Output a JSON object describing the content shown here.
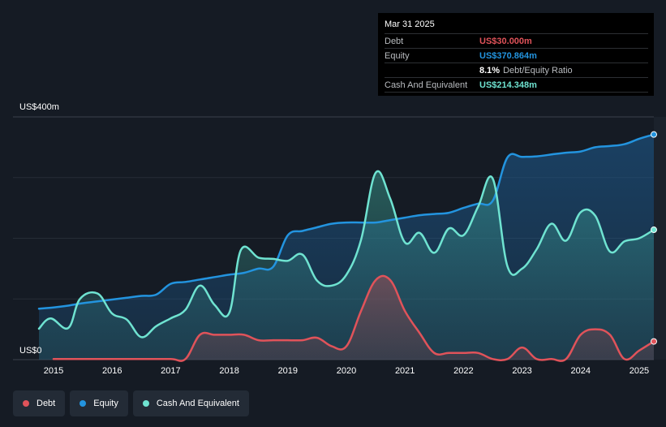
{
  "tooltip": {
    "date": "Mar 31 2025",
    "debt_label": "Debt",
    "debt_value": "US$30.000m",
    "equity_label": "Equity",
    "equity_value": "US$370.864m",
    "ratio_value": "8.1%",
    "ratio_label": "Debt/Equity Ratio",
    "cash_label": "Cash And Equivalent",
    "cash_value": "US$214.348m"
  },
  "legend": [
    {
      "label": "Debt",
      "color": "#e0535a"
    },
    {
      "label": "Equity",
      "color": "#2394df"
    },
    {
      "label": "Cash And Equivalent",
      "color": "#6fe3d1"
    }
  ],
  "chart_data": {
    "type": "area",
    "y_unit_labels": {
      "top": "US$400m",
      "bottom": "US$0"
    },
    "ylim": [
      0,
      400
    ],
    "xlim": [
      2014.75,
      2025.25
    ],
    "x_ticks": [
      "2015",
      "2016",
      "2017",
      "2018",
      "2019",
      "2020",
      "2021",
      "2022",
      "2023",
      "2024",
      "2025"
    ],
    "grid": true,
    "legend_position": "bottom-left",
    "series": [
      {
        "name": "Equity",
        "color": "#2394df",
        "points": [
          [
            2014.75,
            84
          ],
          [
            2015.0,
            86
          ],
          [
            2015.25,
            89
          ],
          [
            2015.5,
            93
          ],
          [
            2015.75,
            96
          ],
          [
            2016.0,
            99
          ],
          [
            2016.25,
            102
          ],
          [
            2016.5,
            105
          ],
          [
            2016.75,
            107
          ],
          [
            2017.0,
            125
          ],
          [
            2017.25,
            128
          ],
          [
            2017.5,
            132
          ],
          [
            2017.75,
            136
          ],
          [
            2018.0,
            140
          ],
          [
            2018.25,
            143
          ],
          [
            2018.5,
            150
          ],
          [
            2018.75,
            153
          ],
          [
            2019.0,
            205
          ],
          [
            2019.25,
            212
          ],
          [
            2019.5,
            218
          ],
          [
            2019.75,
            224
          ],
          [
            2020.0,
            226
          ],
          [
            2020.25,
            226
          ],
          [
            2020.5,
            226
          ],
          [
            2020.75,
            230
          ],
          [
            2021.0,
            234
          ],
          [
            2021.25,
            238
          ],
          [
            2021.5,
            240
          ],
          [
            2021.75,
            242
          ],
          [
            2022.0,
            250
          ],
          [
            2022.25,
            257
          ],
          [
            2022.5,
            262
          ],
          [
            2022.75,
            333
          ],
          [
            2023.0,
            334
          ],
          [
            2023.25,
            335
          ],
          [
            2023.5,
            338
          ],
          [
            2023.75,
            341
          ],
          [
            2024.0,
            343
          ],
          [
            2024.25,
            350
          ],
          [
            2024.5,
            352
          ],
          [
            2024.75,
            355
          ],
          [
            2025.0,
            364
          ],
          [
            2025.25,
            371
          ]
        ]
      },
      {
        "name": "Cash And Equivalent",
        "color": "#6fe3d1",
        "points": [
          [
            2014.75,
            51
          ],
          [
            2014.95,
            68
          ],
          [
            2015.25,
            52
          ],
          [
            2015.45,
            100
          ],
          [
            2015.75,
            109
          ],
          [
            2016.0,
            76
          ],
          [
            2016.25,
            66
          ],
          [
            2016.5,
            37
          ],
          [
            2016.75,
            55
          ],
          [
            2017.0,
            68
          ],
          [
            2017.25,
            82
          ],
          [
            2017.5,
            122
          ],
          [
            2017.75,
            90
          ],
          [
            2018.0,
            77
          ],
          [
            2018.2,
            181
          ],
          [
            2018.5,
            168
          ],
          [
            2018.75,
            166
          ],
          [
            2019.0,
            163
          ],
          [
            2019.25,
            173
          ],
          [
            2019.5,
            130
          ],
          [
            2019.75,
            122
          ],
          [
            2020.0,
            140
          ],
          [
            2020.25,
            197
          ],
          [
            2020.5,
            308
          ],
          [
            2020.75,
            265
          ],
          [
            2021.0,
            193
          ],
          [
            2021.25,
            209
          ],
          [
            2021.5,
            176
          ],
          [
            2021.75,
            216
          ],
          [
            2022.0,
            205
          ],
          [
            2022.25,
            252
          ],
          [
            2022.5,
            298
          ],
          [
            2022.75,
            154
          ],
          [
            2023.0,
            150
          ],
          [
            2023.25,
            182
          ],
          [
            2023.5,
            224
          ],
          [
            2023.75,
            196
          ],
          [
            2024.0,
            243
          ],
          [
            2024.25,
            237
          ],
          [
            2024.5,
            178
          ],
          [
            2024.75,
            195
          ],
          [
            2025.0,
            200
          ],
          [
            2025.25,
            214
          ]
        ]
      },
      {
        "name": "Debt",
        "color": "#e0535a",
        "points": [
          [
            2014.75,
            null
          ],
          [
            2015.0,
            1
          ],
          [
            2015.5,
            1
          ],
          [
            2016.0,
            1
          ],
          [
            2016.5,
            1
          ],
          [
            2017.0,
            1
          ],
          [
            2017.25,
            1
          ],
          [
            2017.5,
            41
          ],
          [
            2017.75,
            41
          ],
          [
            2018.0,
            41
          ],
          [
            2018.25,
            41
          ],
          [
            2018.5,
            32
          ],
          [
            2018.75,
            32
          ],
          [
            2019.0,
            32
          ],
          [
            2019.25,
            32
          ],
          [
            2019.5,
            36
          ],
          [
            2019.75,
            22
          ],
          [
            2020.0,
            22
          ],
          [
            2020.25,
            80
          ],
          [
            2020.5,
            131
          ],
          [
            2020.75,
            131
          ],
          [
            2021.0,
            80
          ],
          [
            2021.25,
            44
          ],
          [
            2021.5,
            11
          ],
          [
            2021.75,
            11
          ],
          [
            2022.0,
            11
          ],
          [
            2022.25,
            11
          ],
          [
            2022.5,
            1
          ],
          [
            2022.75,
            1
          ],
          [
            2023.0,
            20
          ],
          [
            2023.25,
            1
          ],
          [
            2023.5,
            1
          ],
          [
            2023.75,
            1
          ],
          [
            2024.0,
            41
          ],
          [
            2024.25,
            50
          ],
          [
            2024.5,
            41
          ],
          [
            2024.75,
            1
          ],
          [
            2025.0,
            15
          ],
          [
            2025.25,
            30
          ]
        ]
      }
    ]
  }
}
